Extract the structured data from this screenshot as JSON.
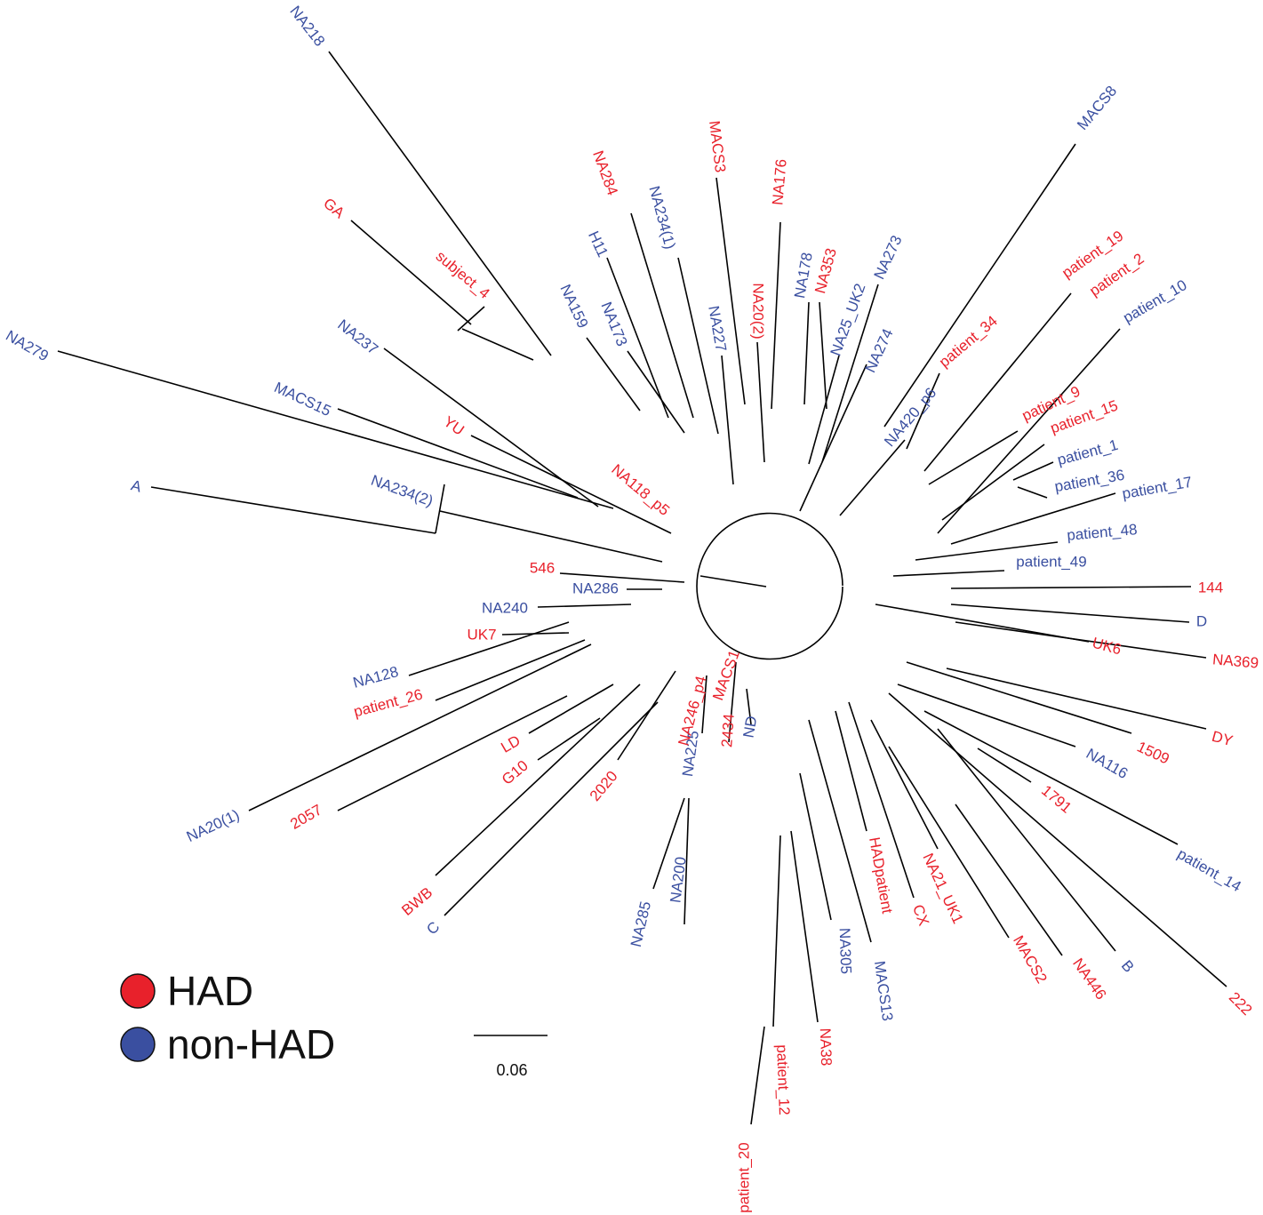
{
  "colors": {
    "had": "#e8212b",
    "non_had": "#3a4fa0"
  },
  "legend": {
    "items": [
      {
        "label": "HAD",
        "group": "had"
      },
      {
        "label": "non-HAD",
        "group": "non_had"
      }
    ]
  },
  "scale_bar": {
    "label": "0.06",
    "value": 0.06
  },
  "tips": [
    {
      "label": "NA218",
      "group": "non_had"
    },
    {
      "label": "GA",
      "group": "had"
    },
    {
      "label": "subject_4",
      "group": "had"
    },
    {
      "label": "NA279",
      "group": "non_had"
    },
    {
      "label": "NA237",
      "group": "non_had"
    },
    {
      "label": "MACS15",
      "group": "non_had"
    },
    {
      "label": "YU",
      "group": "had"
    },
    {
      "label": "A",
      "group": "non_had"
    },
    {
      "label": "NA234(2)",
      "group": "non_had"
    },
    {
      "label": "NA118_p5",
      "group": "had"
    },
    {
      "label": "NA159",
      "group": "non_had"
    },
    {
      "label": "H11",
      "group": "non_had"
    },
    {
      "label": "NA173",
      "group": "non_had"
    },
    {
      "label": "NA284",
      "group": "had"
    },
    {
      "label": "NA234(1)",
      "group": "non_had"
    },
    {
      "label": "NA227",
      "group": "non_had"
    },
    {
      "label": "MACS3",
      "group": "had"
    },
    {
      "label": "NA20(2)",
      "group": "had"
    },
    {
      "label": "NA176",
      "group": "had"
    },
    {
      "label": "NA178",
      "group": "non_had"
    },
    {
      "label": "NA353",
      "group": "had"
    },
    {
      "label": "NA25_UK2",
      "group": "non_had"
    },
    {
      "label": "NA273",
      "group": "non_had"
    },
    {
      "label": "NA274",
      "group": "non_had"
    },
    {
      "label": "NA420_p6",
      "group": "non_had"
    },
    {
      "label": "MACS8",
      "group": "non_had"
    },
    {
      "label": "patient_34",
      "group": "had"
    },
    {
      "label": "patient_19",
      "group": "had"
    },
    {
      "label": "patient_2",
      "group": "had"
    },
    {
      "label": "patient_10",
      "group": "non_had"
    },
    {
      "label": "patient_9",
      "group": "had"
    },
    {
      "label": "patient_15",
      "group": "had"
    },
    {
      "label": "patient_1",
      "group": "non_had"
    },
    {
      "label": "patient_36",
      "group": "non_had"
    },
    {
      "label": "patient_17",
      "group": "non_had"
    },
    {
      "label": "patient_48",
      "group": "non_had"
    },
    {
      "label": "patient_49",
      "group": "non_had"
    },
    {
      "label": "144",
      "group": "had"
    },
    {
      "label": "D",
      "group": "non_had"
    },
    {
      "label": "NA369",
      "group": "had"
    },
    {
      "label": "UK6",
      "group": "had"
    },
    {
      "label": "DY",
      "group": "had"
    },
    {
      "label": "1509",
      "group": "had"
    },
    {
      "label": "NA116",
      "group": "non_had"
    },
    {
      "label": "1791",
      "group": "had"
    },
    {
      "label": "patient_14",
      "group": "non_had"
    },
    {
      "label": "222",
      "group": "had"
    },
    {
      "label": "B",
      "group": "non_had"
    },
    {
      "label": "NA446",
      "group": "had"
    },
    {
      "label": "MACS2",
      "group": "had"
    },
    {
      "label": "NA21_UK1",
      "group": "had"
    },
    {
      "label": "CX",
      "group": "had"
    },
    {
      "label": "HADpatient",
      "group": "had"
    },
    {
      "label": "MACS13",
      "group": "non_had"
    },
    {
      "label": "NA305",
      "group": "non_had"
    },
    {
      "label": "NA38",
      "group": "had"
    },
    {
      "label": "patient_12",
      "group": "had"
    },
    {
      "label": "patient_20",
      "group": "had"
    },
    {
      "label": "NA200",
      "group": "non_had"
    },
    {
      "label": "NA285",
      "group": "non_had"
    },
    {
      "label": "ND",
      "group": "non_had"
    },
    {
      "label": "2434",
      "group": "had"
    },
    {
      "label": "NA225",
      "group": "non_had"
    },
    {
      "label": "NA246_p4",
      "group": "had"
    },
    {
      "label": "MACS1",
      "group": "had"
    },
    {
      "label": "2020",
      "group": "had"
    },
    {
      "label": "C",
      "group": "non_had"
    },
    {
      "label": "BWB",
      "group": "had"
    },
    {
      "label": "G10",
      "group": "had"
    },
    {
      "label": "LD",
      "group": "had"
    },
    {
      "label": "2057",
      "group": "had"
    },
    {
      "label": "NA20(1)",
      "group": "non_had"
    },
    {
      "label": "patient_26",
      "group": "had"
    },
    {
      "label": "NA128",
      "group": "non_had"
    },
    {
      "label": "UK7",
      "group": "had"
    },
    {
      "label": "NA240",
      "group": "non_had"
    },
    {
      "label": "NA286",
      "group": "non_had"
    },
    {
      "label": "546",
      "group": "had"
    }
  ]
}
